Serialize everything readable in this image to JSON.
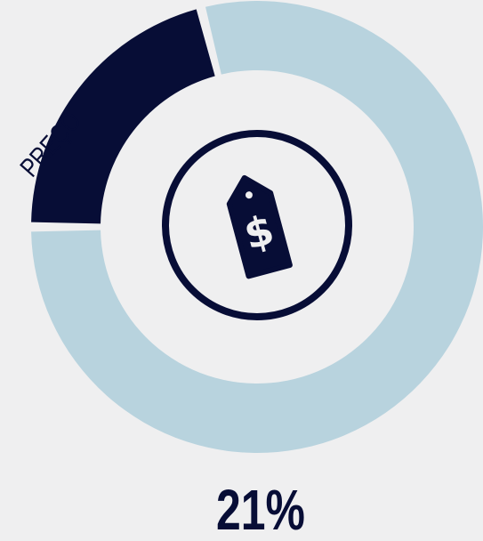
{
  "chart_data": {
    "type": "donut",
    "categories": [
      "PREÇO",
      null
    ],
    "values": [
      21,
      79
    ],
    "value_labels": [
      "21%",
      null
    ],
    "colors": [
      "#070d36",
      "#b8d3de"
    ]
  }
}
